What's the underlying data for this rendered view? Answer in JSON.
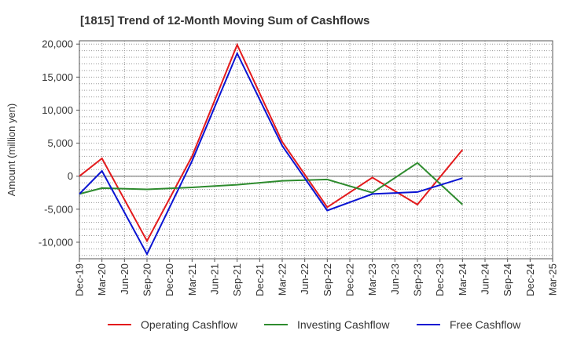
{
  "chart_data": {
    "type": "line",
    "title": "[1815]  Trend of 12-Month Moving Sum of Cashflows",
    "xlabel": "",
    "ylabel": "Amount (million yen)",
    "ylim": [
      -12500,
      20500
    ],
    "yticks": [
      -10000,
      -5000,
      0,
      5000,
      10000,
      15000,
      20000
    ],
    "ytick_labels": [
      "-10,000",
      "-5,000",
      "0",
      "5,000",
      "10,000",
      "15,000",
      "20,000"
    ],
    "categories": [
      "Dec-19",
      "Mar-20",
      "Jun-20",
      "Sep-20",
      "Dec-20",
      "Mar-21",
      "Jun-21",
      "Sep-21",
      "Dec-21",
      "Mar-22",
      "Jun-22",
      "Sep-22",
      "Dec-22",
      "Mar-23",
      "Jun-23",
      "Sep-23",
      "Dec-23",
      "Mar-24",
      "Jun-24",
      "Sep-24",
      "Dec-24",
      "Mar-25"
    ],
    "grid": true,
    "legend_position": "bottom",
    "series": [
      {
        "name": "Operating Cashflow",
        "color": "#e31a1c",
        "values": [
          0,
          2700,
          null,
          -9800,
          null,
          3000,
          null,
          19900,
          null,
          5200,
          null,
          -4700,
          null,
          -200,
          null,
          -4300,
          null,
          4000,
          null,
          null,
          null,
          null
        ]
      },
      {
        "name": "Investing Cashflow",
        "color": "#2e8b2e",
        "values": [
          -2700,
          -1800,
          null,
          -2000,
          null,
          -1700,
          null,
          -1300,
          null,
          -700,
          null,
          -500,
          null,
          -2500,
          null,
          2000,
          null,
          -4300,
          null,
          null,
          null,
          null
        ]
      },
      {
        "name": "Free Cashflow",
        "color": "#0a14d2",
        "values": [
          -2700,
          800,
          null,
          -11800,
          null,
          2300,
          null,
          18600,
          null,
          4600,
          null,
          -5200,
          null,
          -2700,
          null,
          -2400,
          null,
          -300,
          null,
          null,
          null,
          null
        ]
      }
    ]
  }
}
